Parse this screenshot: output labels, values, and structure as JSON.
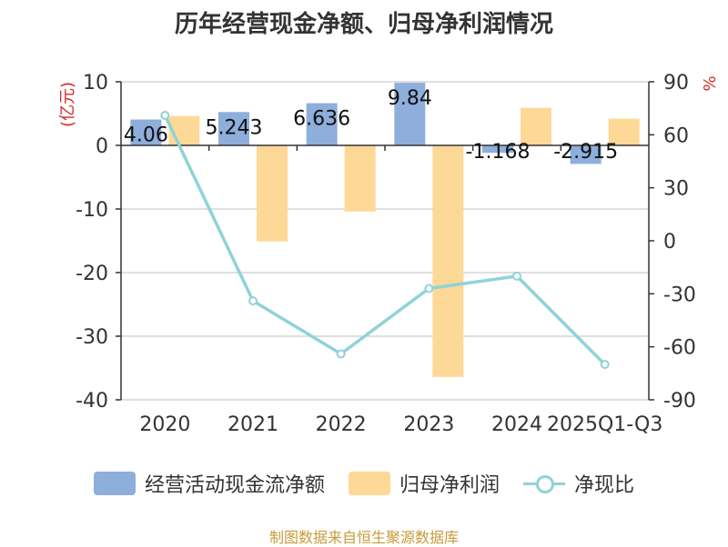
{
  "chart_data": {
    "type": "bar+line",
    "title": "历年经营现金净额、归母净利润情况",
    "categories": [
      "2020",
      "2021",
      "2022",
      "2023",
      "2024",
      "2025Q1-Q3"
    ],
    "series": [
      {
        "name": "经营活动现金流净额",
        "type": "bar",
        "axis": "left",
        "color": "#8eaedc",
        "values": [
          4.06,
          5.243,
          6.636,
          9.84,
          -1.168,
          -2.915
        ]
      },
      {
        "name": "归母净利润",
        "type": "bar",
        "axis": "left",
        "color": "#fed896",
        "values": [
          4.6,
          -15.1,
          -10.4,
          -36.4,
          5.9,
          4.2
        ]
      },
      {
        "name": "净现比",
        "type": "line",
        "axis": "right",
        "color": "#8fd3d8",
        "values": [
          71,
          -34,
          -64,
          -27,
          -20,
          -70
        ]
      }
    ],
    "data_labels": [
      "4.06",
      "5.243",
      "6.636",
      "9.84",
      "-1.168",
      "-2.915"
    ],
    "left_axis": {
      "label": "(亿元)",
      "range": [
        -40,
        10
      ],
      "ticks": [
        "10",
        "0",
        "-10",
        "-20",
        "-30",
        "-40"
      ]
    },
    "right_axis": {
      "label": "%",
      "range": [
        -90,
        90
      ],
      "ticks": [
        "90",
        "60",
        "30",
        "0",
        "-30",
        "-60",
        "-90"
      ]
    },
    "grid": true,
    "legend_position": "bottom"
  },
  "legend": {
    "items": [
      "经营活动现金流净额",
      "归母净利润",
      "净现比"
    ]
  },
  "source": "制图数据来自恒生聚源数据库"
}
